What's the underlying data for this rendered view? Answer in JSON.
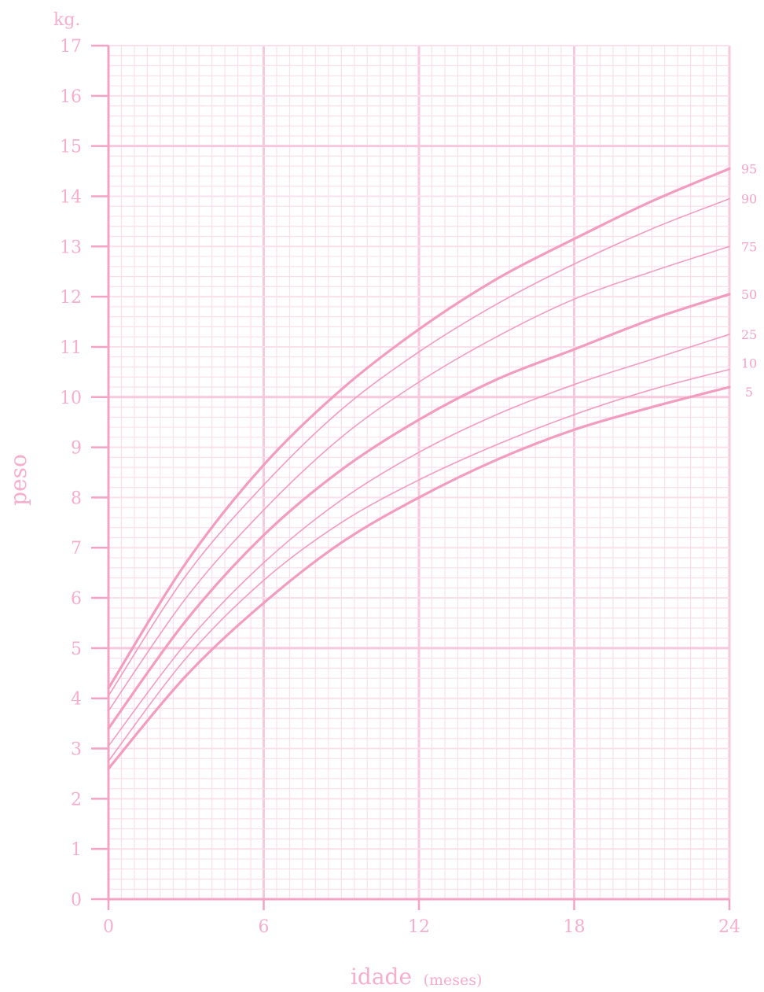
{
  "chart_data": {
    "type": "line",
    "y_unit": "kg.",
    "ylabel": "peso",
    "xlabel": "idade",
    "xlabel_unit": "(meses)",
    "xlim": [
      0,
      24
    ],
    "ylim": [
      0,
      17
    ],
    "x_ticks": [
      "0",
      "6",
      "12",
      "18",
      "24"
    ],
    "y_ticks": [
      "0",
      "1",
      "2",
      "3",
      "4",
      "5",
      "6",
      "7",
      "8",
      "9",
      "10",
      "11",
      "12",
      "13",
      "14",
      "15",
      "16",
      "17"
    ],
    "grid": true,
    "colors": {
      "axis": "#f4a3c4",
      "grid_minor": "#fbe0ec",
      "grid_major": "#f8c8dc",
      "curve": "#f29cbf",
      "text": "#f6aecd"
    },
    "x": [
      0,
      3,
      6,
      9,
      12,
      15,
      18,
      21,
      24
    ],
    "series": [
      {
        "name": "95",
        "heavy": true,
        "values": [
          4.2,
          6.7,
          8.65,
          10.15,
          11.35,
          12.35,
          13.15,
          13.9,
          14.55
        ]
      },
      {
        "name": "90",
        "heavy": false,
        "values": [
          4.05,
          6.45,
          8.25,
          9.75,
          10.9,
          11.85,
          12.65,
          13.35,
          13.95
        ]
      },
      {
        "name": "75",
        "heavy": false,
        "values": [
          3.75,
          6.0,
          7.75,
          9.2,
          10.3,
          11.2,
          11.95,
          12.5,
          13.0
        ]
      },
      {
        "name": "50",
        "heavy": true,
        "values": [
          3.4,
          5.55,
          7.25,
          8.55,
          9.55,
          10.35,
          10.95,
          11.55,
          12.05
        ]
      },
      {
        "name": "25",
        "heavy": false,
        "values": [
          3.05,
          5.1,
          6.7,
          7.95,
          8.9,
          9.65,
          10.25,
          10.75,
          11.25
        ]
      },
      {
        "name": "10",
        "heavy": false,
        "values": [
          2.75,
          4.8,
          6.35,
          7.5,
          8.35,
          9.05,
          9.65,
          10.15,
          10.55
        ]
      },
      {
        "name": "5",
        "heavy": true,
        "values": [
          2.6,
          4.45,
          5.9,
          7.1,
          8.0,
          8.75,
          9.35,
          9.8,
          10.2
        ]
      }
    ]
  }
}
